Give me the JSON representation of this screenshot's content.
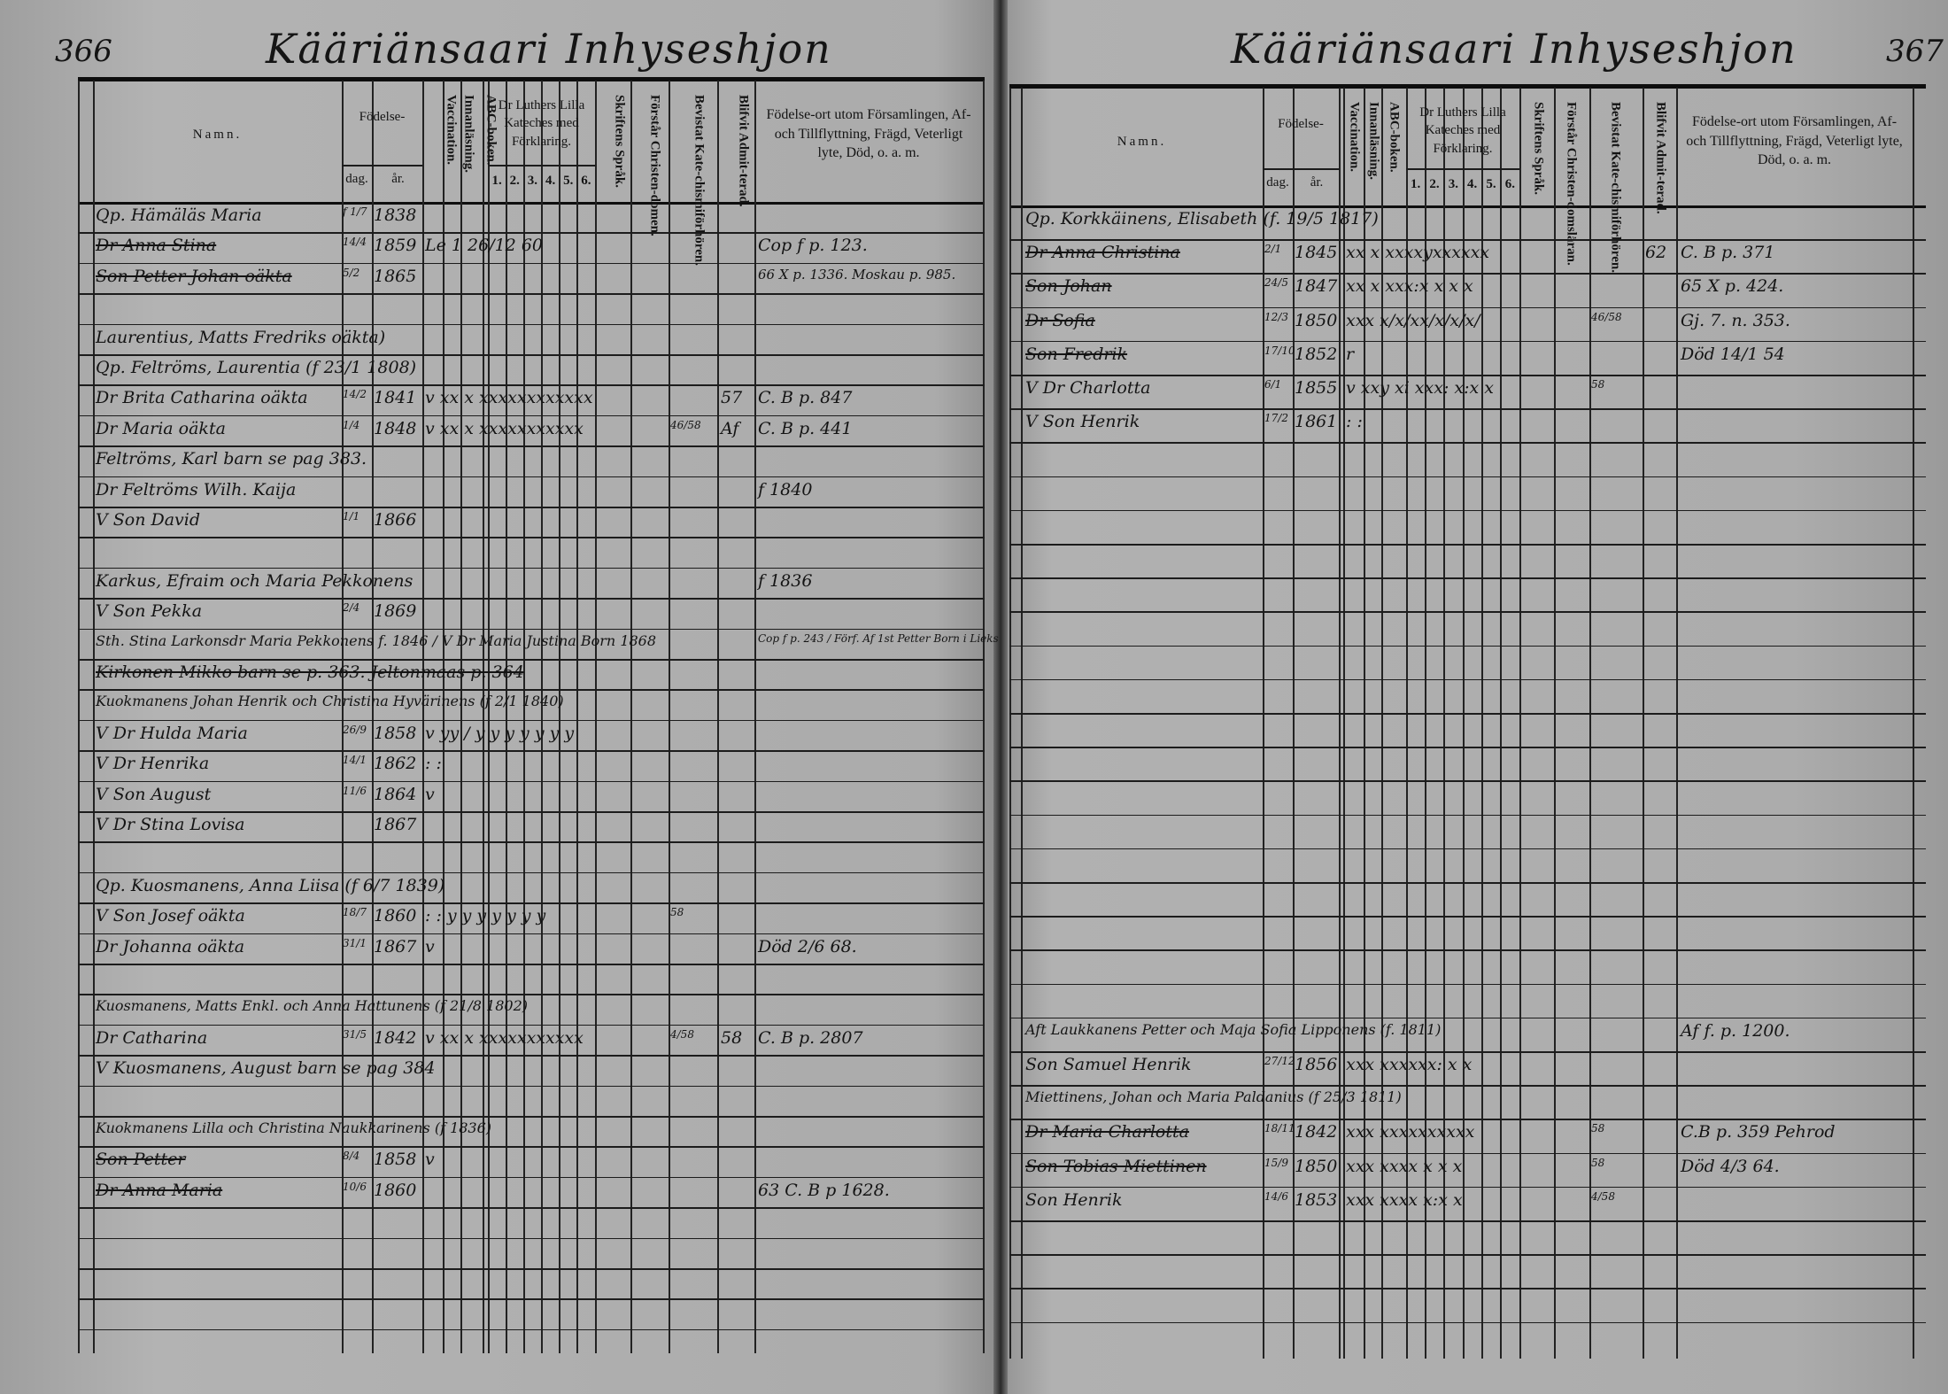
{
  "left": {
    "page_number": "366",
    "title": "Kääriänsaari Inhyseshjon",
    "rows": [
      {
        "name": "Qp. Hämäläs Maria",
        "dag": "f 1/7",
        "ar": "1838",
        "marks": "",
        "bevistat": "",
        "admit": "",
        "note": "",
        "struck": false
      },
      {
        "name": "Dr Anna Stina",
        "dag": "14/4",
        "ar": "1859",
        "marks": "Le 1 26/12 60",
        "bevistat": "",
        "admit": "",
        "note": "Cop f p. 123.",
        "struck": true
      },
      {
        "name": "Son Petter Johan oäkta",
        "dag": "5/2",
        "ar": "1865",
        "marks": "",
        "bevistat": "",
        "admit": "",
        "note": "66 X p. 1336. Moskau p. 985.",
        "struck": true
      },
      {
        "name": "",
        "dag": "",
        "ar": "",
        "marks": "",
        "bevistat": "",
        "admit": "",
        "note": "",
        "struck": false
      },
      {
        "name": "Laurentius, Matts Fredriks oäkta)",
        "dag": "",
        "ar": "",
        "marks": "",
        "bevistat": "",
        "admit": "",
        "note": "",
        "struck": false
      },
      {
        "name": "Qp. Feltröms, Laurentia (f 23/1 1808)",
        "dag": "",
        "ar": "",
        "marks": "",
        "bevistat": "",
        "admit": "",
        "note": "",
        "struck": false
      },
      {
        "name": "Dr Brita Catharina oäkta",
        "dag": "14/2",
        "ar": "1841",
        "marks": "v xx x xxxxxxxxxxxx",
        "bevistat": "",
        "admit": "57",
        "note": "C. B p. 847",
        "struck": false
      },
      {
        "name": "Dr Maria oäkta",
        "dag": "1/4",
        "ar": "1848",
        "marks": "v xx x xxxxxxxxxxx",
        "bevistat": "46/58",
        "admit": "Af",
        "note": "C. B p. 441",
        "struck": false
      },
      {
        "name": "Feltröms, Karl barn se pag 383.",
        "dag": "",
        "ar": "",
        "marks": "",
        "bevistat": "",
        "admit": "",
        "note": "",
        "struck": false
      },
      {
        "name": "Dr Feltröms Wilh. Kaija",
        "dag": "",
        "ar": "",
        "marks": "",
        "bevistat": "",
        "admit": "",
        "note": "f 1840",
        "struck": false
      },
      {
        "name": "V Son David",
        "dag": "1/1",
        "ar": "1866",
        "marks": "",
        "bevistat": "",
        "admit": "",
        "note": "",
        "struck": false
      },
      {
        "name": "",
        "dag": "",
        "ar": "",
        "marks": "",
        "bevistat": "",
        "admit": "",
        "note": "",
        "struck": false
      },
      {
        "name": "Karkus, Efraim och Maria Pekkonens",
        "dag": "",
        "ar": "",
        "marks": "",
        "bevistat": "",
        "admit": "",
        "note": "f 1836",
        "struck": false
      },
      {
        "name": "V Son Pekka",
        "dag": "2/4",
        "ar": "1869",
        "marks": "",
        "bevistat": "",
        "admit": "",
        "note": "",
        "struck": false
      },
      {
        "name": "Sth. Stina Larkonsdr Maria Pekkonens f. 1846 / V Dr Maria Justina Born 1868",
        "dag": "",
        "ar": "",
        "marks": "",
        "bevistat": "",
        "admit": "",
        "note": "Cop f p. 243 / Förf. Af 1st Petter Born i Lieks",
        "struck": false
      },
      {
        "name": "Kirkonen Mikko barn se p. 363. Jeltonmaas p. 364",
        "dag": "",
        "ar": "",
        "marks": "",
        "bevistat": "",
        "admit": "",
        "note": "",
        "struck": true
      },
      {
        "name": "Kuokmanens Johan Henrik och Christina Hyvärinens (f 2/1 1840)",
        "dag": "",
        "ar": "",
        "marks": "",
        "bevistat": "",
        "admit": "",
        "note": "",
        "struck": false
      },
      {
        "name": "V Dr Hulda Maria",
        "dag": "26/9",
        "ar": "1858",
        "marks": "v yy / y y y y y y y",
        "bevistat": "",
        "admit": "",
        "note": "",
        "struck": false
      },
      {
        "name": "V Dr Henrika",
        "dag": "14/1",
        "ar": "1862",
        "marks": ": :",
        "bevistat": "",
        "admit": "",
        "note": "",
        "struck": false
      },
      {
        "name": "V Son August",
        "dag": "11/6",
        "ar": "1864",
        "marks": "v",
        "bevistat": "",
        "admit": "",
        "note": "",
        "struck": false
      },
      {
        "name": "V Dr Stina Lovisa",
        "dag": "",
        "ar": "1867",
        "marks": "",
        "bevistat": "",
        "admit": "",
        "note": "",
        "struck": false
      },
      {
        "name": "",
        "dag": "",
        "ar": "",
        "marks": "",
        "bevistat": "",
        "admit": "",
        "note": "",
        "struck": false
      },
      {
        "name": "Qp. Kuosmanens, Anna Liisa (f 6/7 1839)",
        "dag": "",
        "ar": "",
        "marks": "",
        "bevistat": "",
        "admit": "",
        "note": "",
        "struck": false
      },
      {
        "name": "V Son Josef oäkta",
        "dag": "18/7",
        "ar": "1860",
        "marks": ": : y y y y y y y",
        "bevistat": "58",
        "admit": "",
        "note": "",
        "struck": false
      },
      {
        "name": "Dr Johanna oäkta",
        "dag": "31/1",
        "ar": "1867",
        "marks": "v",
        "bevistat": "",
        "admit": "",
        "note": "Död 2/6 68.",
        "struck": false
      },
      {
        "name": "",
        "dag": "",
        "ar": "",
        "marks": "",
        "bevistat": "",
        "admit": "",
        "note": "",
        "struck": false
      },
      {
        "name": "Kuosmanens, Matts Enkl. och Anna Hattunens (f 21/8 1802)",
        "dag": "",
        "ar": "",
        "marks": "",
        "bevistat": "",
        "admit": "",
        "note": "",
        "struck": false
      },
      {
        "name": "Dr Catharina",
        "dag": "31/5",
        "ar": "1842",
        "marks": "v xx x xxxxxxxxxxx",
        "bevistat": "4/58",
        "admit": "58",
        "note": "C. B p. 2807",
        "struck": false
      },
      {
        "name": "V Kuosmanens, August barn se pag 384",
        "dag": "",
        "ar": "",
        "marks": "",
        "bevistat": "",
        "admit": "",
        "note": "",
        "struck": false
      },
      {
        "name": "",
        "dag": "",
        "ar": "",
        "marks": "",
        "bevistat": "",
        "admit": "",
        "note": "",
        "struck": false
      },
      {
        "name": "Kuokmanens Lilla och Christina Naukkarinens (f 1836)",
        "dag": "",
        "ar": "",
        "marks": "",
        "bevistat": "",
        "admit": "",
        "note": "",
        "struck": false
      },
      {
        "name": "Son Petter",
        "dag": "8/4",
        "ar": "1858",
        "marks": "v",
        "bevistat": "",
        "admit": "",
        "note": "",
        "struck": true
      },
      {
        "name": "Dr Anna Maria",
        "dag": "10/6",
        "ar": "1860",
        "marks": "",
        "bevistat": "",
        "admit": "",
        "note": "63 C. B p 1628.",
        "struck": true
      }
    ]
  },
  "right": {
    "page_number": "367",
    "title": "Kääriänsaari Inhyseshjon",
    "rows": [
      {
        "name": "Qp. Korkkäinens, Elisabeth (f. 19/5 1817)",
        "dag": "",
        "ar": "",
        "marks": "",
        "bevistat": "",
        "admit": "",
        "note": "",
        "struck": false
      },
      {
        "name": "Dr Anna Christina",
        "dag": "2/1",
        "ar": "1845",
        "marks": "xx x xxxxyxxxxxx",
        "bevistat": "",
        "admit": "62",
        "note": "C. B p. 371",
        "struck": true
      },
      {
        "name": "Son Johan",
        "dag": "24/5",
        "ar": "1847",
        "marks": "xx x xxx:x x x x",
        "bevistat": "",
        "admit": "",
        "note": "65 X p. 424.",
        "struck": true
      },
      {
        "name": "Dr Sofia",
        "dag": "12/3",
        "ar": "1850",
        "marks": "xxx x/x/xx/x/x/x/",
        "bevistat": "46/58",
        "admit": "",
        "note": "Gj. 7. n. 353.",
        "struck": true
      },
      {
        "name": "Son Fredrik",
        "dag": "17/10",
        "ar": "1852",
        "marks": "r",
        "bevistat": "",
        "admit": "",
        "note": "Död 14/1 54",
        "struck": true
      },
      {
        "name": "V Dr Charlotta",
        "dag": "6/1",
        "ar": "1855",
        "marks": "v xxy xi xxx: x:x x",
        "bevistat": "58",
        "admit": "",
        "note": "",
        "struck": false
      },
      {
        "name": "V Son Henrik",
        "dag": "17/2",
        "ar": "1861",
        "marks": ": :",
        "bevistat": "",
        "admit": "",
        "note": "",
        "struck": false
      },
      {
        "name": "",
        "dag": "",
        "ar": "",
        "marks": "",
        "bevistat": "",
        "admit": "",
        "note": "",
        "struck": false
      },
      {
        "name": "",
        "dag": "",
        "ar": "",
        "marks": "",
        "bevistat": "",
        "admit": "",
        "note": "",
        "struck": false
      },
      {
        "name": "",
        "dag": "",
        "ar": "",
        "marks": "",
        "bevistat": "",
        "admit": "",
        "note": "",
        "struck": false
      },
      {
        "name": "",
        "dag": "",
        "ar": "",
        "marks": "",
        "bevistat": "",
        "admit": "",
        "note": "",
        "struck": false
      },
      {
        "name": "",
        "dag": "",
        "ar": "",
        "marks": "",
        "bevistat": "",
        "admit": "",
        "note": "",
        "struck": false
      },
      {
        "name": "",
        "dag": "",
        "ar": "",
        "marks": "",
        "bevistat": "",
        "admit": "",
        "note": "",
        "struck": false
      },
      {
        "name": "",
        "dag": "",
        "ar": "",
        "marks": "",
        "bevistat": "",
        "admit": "",
        "note": "",
        "struck": false
      },
      {
        "name": "",
        "dag": "",
        "ar": "",
        "marks": "",
        "bevistat": "",
        "admit": "",
        "note": "",
        "struck": false
      },
      {
        "name": "",
        "dag": "",
        "ar": "",
        "marks": "",
        "bevistat": "",
        "admit": "",
        "note": "",
        "struck": false
      },
      {
        "name": "",
        "dag": "",
        "ar": "",
        "marks": "",
        "bevistat": "",
        "admit": "",
        "note": "",
        "struck": false
      },
      {
        "name": "",
        "dag": "",
        "ar": "",
        "marks": "",
        "bevistat": "",
        "admit": "",
        "note": "",
        "struck": false
      },
      {
        "name": "",
        "dag": "",
        "ar": "",
        "marks": "",
        "bevistat": "",
        "admit": "",
        "note": "",
        "struck": false
      },
      {
        "name": "",
        "dag": "",
        "ar": "",
        "marks": "",
        "bevistat": "",
        "admit": "",
        "note": "",
        "struck": false
      },
      {
        "name": "",
        "dag": "",
        "ar": "",
        "marks": "",
        "bevistat": "",
        "admit": "",
        "note": "",
        "struck": false
      },
      {
        "name": "",
        "dag": "",
        "ar": "",
        "marks": "",
        "bevistat": "",
        "admit": "",
        "note": "",
        "struck": false
      },
      {
        "name": "",
        "dag": "",
        "ar": "",
        "marks": "",
        "bevistat": "",
        "admit": "",
        "note": "",
        "struck": false
      },
      {
        "name": "",
        "dag": "",
        "ar": "",
        "marks": "",
        "bevistat": "",
        "admit": "",
        "note": "",
        "struck": false
      },
      {
        "name": "Aft Laukkanens Petter och Maja Sofia Lipponens (f. 1811)",
        "dag": "",
        "ar": "",
        "marks": "",
        "bevistat": "",
        "admit": "",
        "note": "Af f. p. 1200.",
        "struck": false
      },
      {
        "name": "Son Samuel Henrik",
        "dag": "27/12",
        "ar": "1856",
        "marks": "xxx xxxxxx: x x",
        "bevistat": "",
        "admit": "",
        "note": "",
        "struck": false
      },
      {
        "name": "Miettinens, Johan och Maria Paldanius (f 25/3 1811)",
        "dag": "",
        "ar": "",
        "marks": "",
        "bevistat": "",
        "admit": "",
        "note": "",
        "struck": false
      },
      {
        "name": "Dr Maria Charlotta",
        "dag": "18/11",
        "ar": "1842",
        "marks": "xxx xxxxxxxxxx",
        "bevistat": "58",
        "admit": "",
        "note": "C.B p. 359 Pehrod",
        "struck": true
      },
      {
        "name": "Son Tobias Miettinen",
        "dag": "15/9",
        "ar": "1850",
        "marks": "xxx xxxx x x x",
        "bevistat": "58",
        "admit": "",
        "note": "Död 4/3 64.",
        "struck": true
      },
      {
        "name": "Son Henrik",
        "dag": "14/6",
        "ar": "1853",
        "marks": "xxx xxxx x:x x",
        "bevistat": "4/58",
        "admit": "",
        "note": "",
        "struck": false
      }
    ]
  },
  "header": {
    "namn": "Namn.",
    "fodelse": "Födelse-",
    "dag": "dag.",
    "ar": "år.",
    "vaccination": "Vaccination.",
    "innanlasning": "Innanläsning.",
    "abc": "ABC-boken.",
    "luther": "Dr Luthers Lilla Kateches med Förklaring.",
    "luther_nums": [
      "1.",
      "2.",
      "3.",
      "4.",
      "5.",
      "6."
    ],
    "skriftens": "Skriftens Språk.",
    "forstar_left": "Förstår Christen-domen.",
    "forstar_right": "Förstår Christen-domsläran.",
    "bevistat": "Bevistat Kate-chismiförhören.",
    "blifvit": "Blifvit Admit-terad.",
    "fodelseort": "Födelse-ort utom Församlingen, Af- och Tillflyttning, Frägd, Veterligt lyte, Död, o. a. m."
  },
  "colors": {
    "paper": "#ababab",
    "ink": "#141414"
  }
}
